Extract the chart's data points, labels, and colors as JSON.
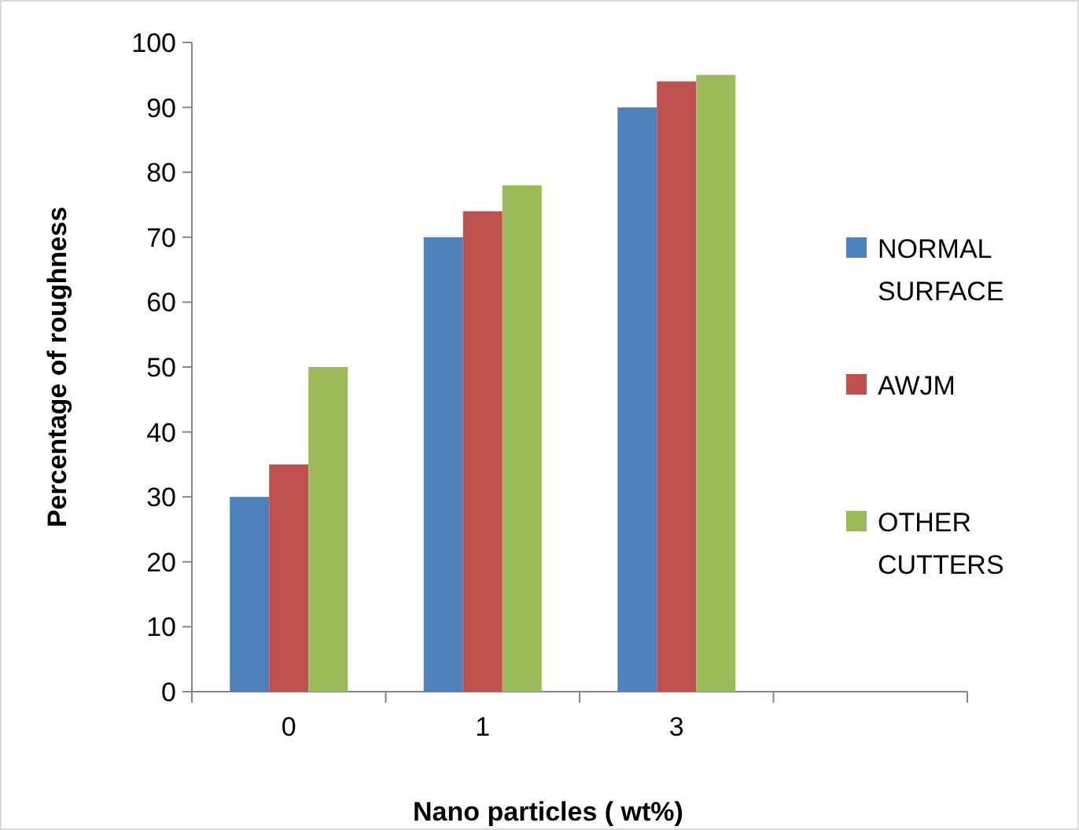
{
  "chart_data": {
    "type": "bar",
    "xlabel": "Nano particles ( wt%)",
    "ylabel": "Percentage of roughness",
    "categories": [
      "0",
      "1",
      "3",
      null
    ],
    "series": [
      {
        "name": "NORMAL SURFACE",
        "color": "#4f81bd",
        "values": [
          30,
          70,
          90,
          null
        ]
      },
      {
        "name": "AWJM",
        "color": "#c0504d",
        "values": [
          35,
          74,
          94,
          null
        ]
      },
      {
        "name": "OTHER CUTTERS",
        "color": "#9bbb59",
        "values": [
          50,
          78,
          95,
          null
        ]
      }
    ],
    "ylim": [
      0,
      100
    ],
    "yticks": [
      0,
      10,
      20,
      30,
      40,
      50,
      60,
      70,
      80,
      90,
      100
    ],
    "legend": "right"
  }
}
